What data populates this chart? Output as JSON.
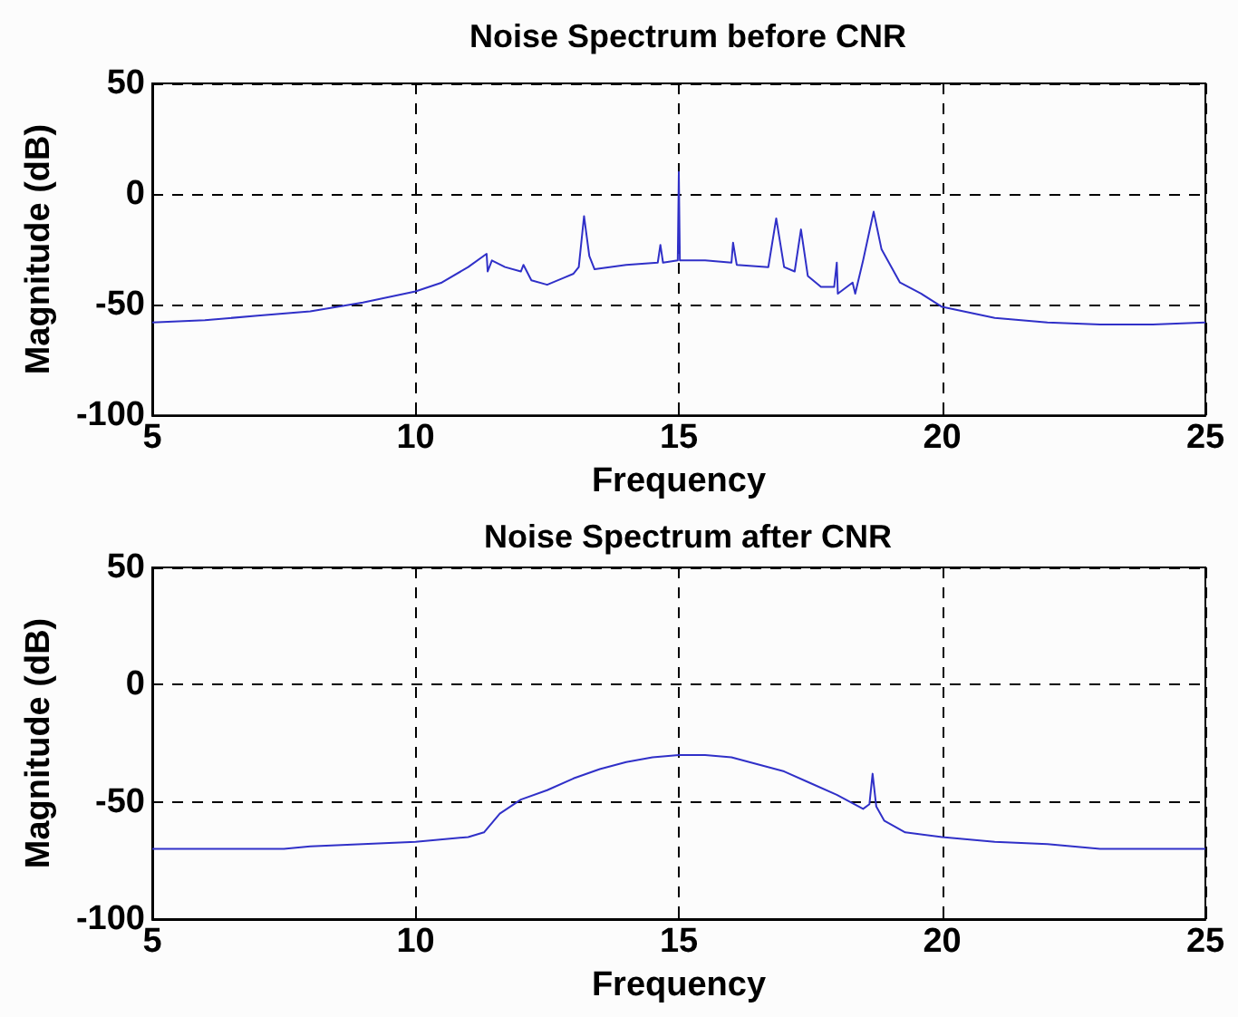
{
  "chart_data": [
    {
      "type": "line",
      "title": "Noise Spectrum before CNR",
      "xlabel": "Frequency",
      "ylabel": "Magnitude (dB)",
      "xlim": [
        5,
        25
      ],
      "ylim": [
        -100,
        50
      ],
      "xticks": [
        5,
        10,
        15,
        20,
        25
      ],
      "yticks": [
        -100,
        -50,
        0,
        50
      ],
      "grid": true,
      "marker": "none",
      "line_style": "solid",
      "series": [
        {
          "color": "#3030c8",
          "x": [
            5,
            6,
            7,
            8,
            9,
            10,
            10.5,
            11,
            11.35,
            11.37,
            11.45,
            11.7,
            12,
            12.05,
            12.2,
            12.5,
            12.8,
            13,
            13.1,
            13.2,
            13.3,
            13.4,
            14,
            14.6,
            14.65,
            14.7,
            14.98,
            15,
            15.02,
            15.5,
            16,
            16.03,
            16.1,
            16.7,
            16.85,
            17,
            17.2,
            17.32,
            17.45,
            17.7,
            17.95,
            18,
            18.02,
            18.3,
            18.35,
            18.5,
            18.7,
            18.85,
            19.2,
            19.6,
            20,
            21,
            22,
            23,
            24,
            25
          ],
          "values": [
            -58,
            -57,
            -55,
            -53,
            -49,
            -44,
            -40,
            -33,
            -27,
            -35,
            -30,
            -33,
            -35,
            -32,
            -39,
            -41,
            -38,
            -36,
            -33,
            -10,
            -28,
            -34,
            -32,
            -31,
            -23,
            -31,
            -30,
            10,
            -30,
            -30,
            -31,
            -22,
            -32,
            -33,
            -11,
            -33,
            -35,
            -16,
            -37,
            -42,
            -42,
            -31,
            -45,
            -40,
            -45,
            -30,
            -8,
            -25,
            -40,
            -45,
            -51,
            -56,
            -58,
            -59,
            -59,
            -58
          ]
        }
      ]
    },
    {
      "type": "line",
      "title": "Noise Spectrum after CNR",
      "xlabel": "Frequency",
      "ylabel": "Magnitude (dB)",
      "xlim": [
        5,
        25
      ],
      "ylim": [
        -100,
        50
      ],
      "xticks": [
        5,
        10,
        15,
        20,
        25
      ],
      "yticks": [
        -100,
        -50,
        0,
        50
      ],
      "grid": true,
      "marker": "none",
      "line_style": "solid",
      "series": [
        {
          "color": "#3030c8",
          "x": [
            5,
            7.5,
            8,
            9,
            10,
            11,
            11.3,
            11.6,
            12,
            12.5,
            13,
            13.5,
            14,
            14.5,
            15,
            15.5,
            16,
            16.5,
            17,
            17.5,
            18,
            18.5,
            18.62,
            18.68,
            18.75,
            18.9,
            19.3,
            20,
            21,
            22,
            23,
            25
          ],
          "values": [
            -70,
            -70,
            -69,
            -68,
            -67,
            -65,
            -63,
            -55,
            -49,
            -45,
            -40,
            -36,
            -33,
            -31,
            -30,
            -30,
            -31,
            -34,
            -37,
            -42,
            -47,
            -53,
            -51,
            -38,
            -52,
            -58,
            -63,
            -65,
            -67,
            -68,
            -70,
            -70
          ]
        }
      ]
    }
  ]
}
